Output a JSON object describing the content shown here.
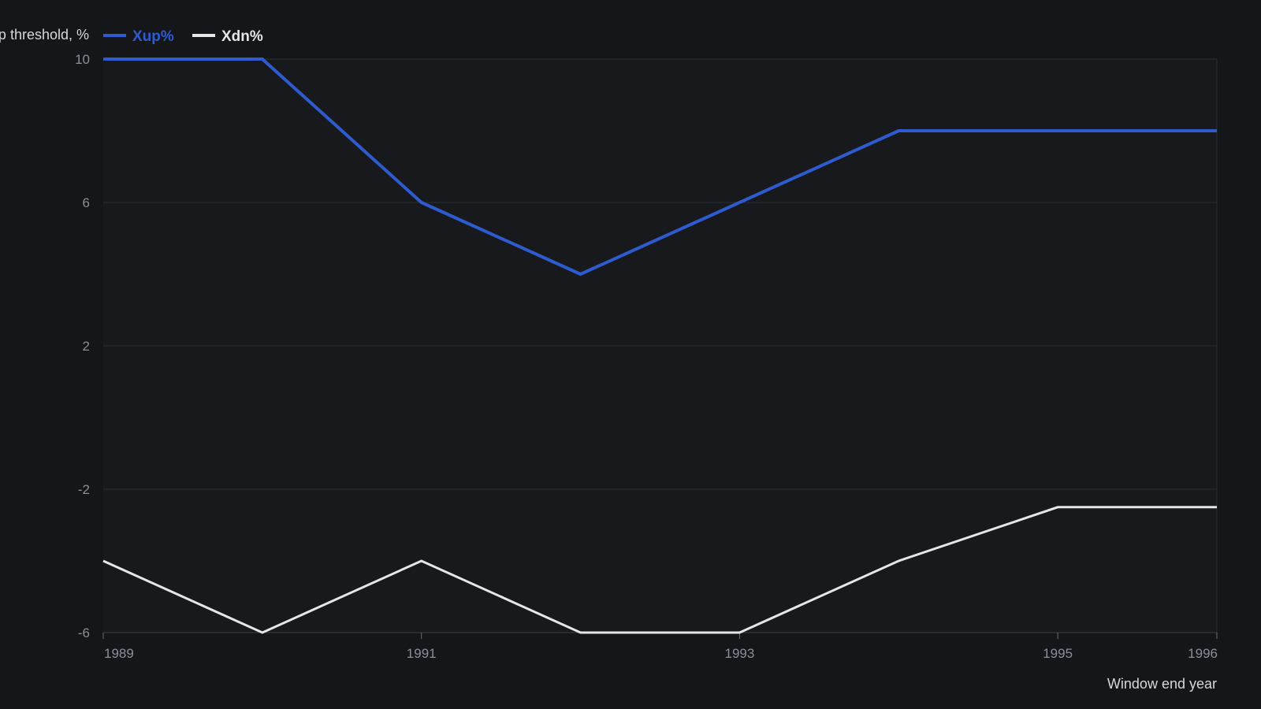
{
  "chart_data": {
    "type": "line",
    "ylabel": "Markup threshold, %",
    "xlabel": "Window end year",
    "x": [
      1989,
      1990,
      1991,
      1992,
      1993,
      1994,
      1995,
      1996
    ],
    "xticks": [
      1989,
      1991,
      1993,
      1995,
      1996
    ],
    "yticks": [
      -6,
      -2,
      2,
      6,
      10
    ],
    "xlim": [
      1989,
      1996
    ],
    "ylim": [
      -6,
      10
    ],
    "grid": true,
    "legend_position": "top-left",
    "series": [
      {
        "name": "Xup%",
        "color": "#2f5bd0",
        "values": [
          10,
          10,
          6,
          4,
          6,
          8,
          8,
          8
        ]
      },
      {
        "name": "Xdn%",
        "color": "#e6e6e6",
        "values": [
          -4,
          -6,
          -4,
          -6,
          -6,
          -4,
          -2.5,
          -2.5
        ]
      }
    ]
  }
}
